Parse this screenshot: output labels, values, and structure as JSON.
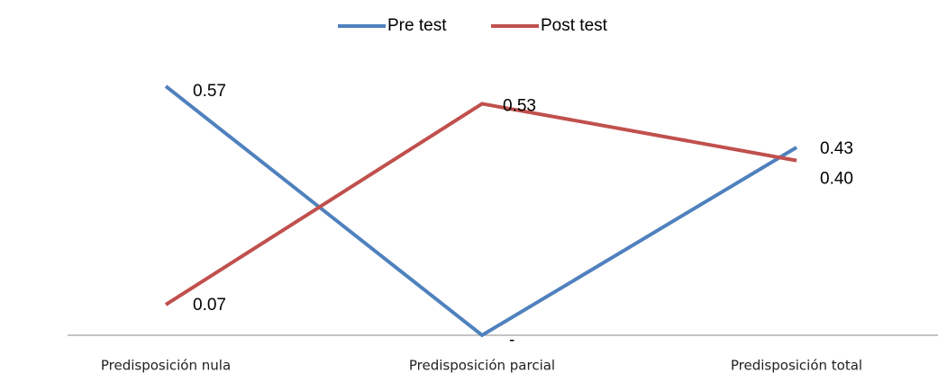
{
  "chart_data": {
    "type": "line",
    "categories": [
      "Predisposición nula",
      "Predisposición parcial",
      "Predisposición total"
    ],
    "series": [
      {
        "name": "Pre test",
        "color": "#4f81bd",
        "values": [
          0.57,
          0,
          0.43
        ],
        "value_labels": [
          "0.57",
          "-",
          "0.43"
        ]
      },
      {
        "name": "Post test",
        "color": "#c0504d",
        "values": [
          0.07,
          0.53,
          0.4
        ],
        "value_labels": [
          "0.07",
          "0.53",
          "0.40"
        ]
      }
    ],
    "ylim": [
      0,
      0.6
    ],
    "legend": "top"
  }
}
